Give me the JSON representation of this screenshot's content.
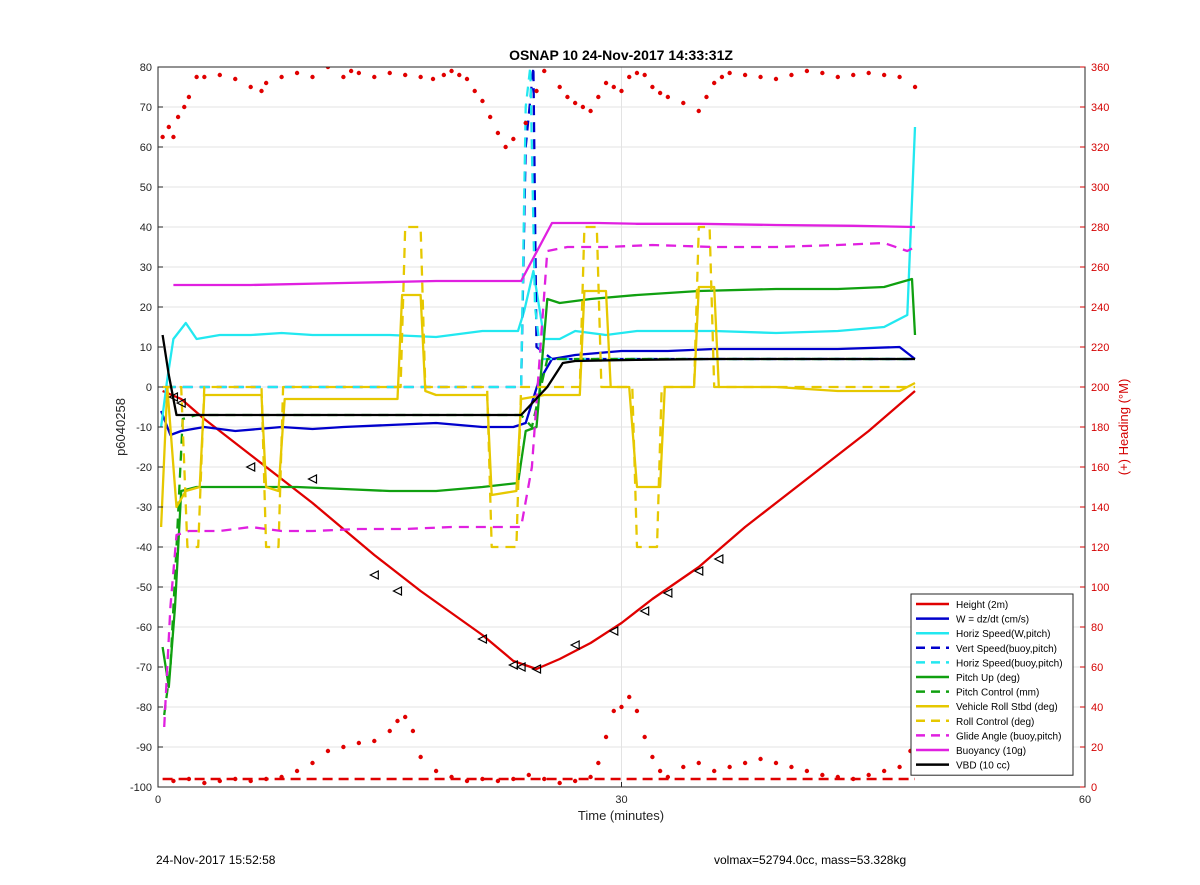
{
  "footer": {
    "left": "24-Nov-2017 15:52:58",
    "right": "volmax=52794.0cc, mass=53.328kg"
  },
  "chart_data": {
    "type": "line",
    "title": "OSNAP 10 24-Nov-2017 14:33:31Z",
    "xlabel": "Time (minutes)",
    "ylabel_left": "p6040258",
    "ylabel_right": "(+) Heading (°M)",
    "xlim": [
      0,
      60
    ],
    "ylim_left": [
      -100,
      80
    ],
    "ylim_right": [
      0,
      360
    ],
    "xticks": [
      0,
      30,
      60
    ],
    "yticks_left": [
      80,
      70,
      60,
      50,
      40,
      30,
      20,
      10,
      0,
      -10,
      -20,
      -30,
      -40,
      -50,
      -60,
      -70,
      -80,
      -90,
      -100
    ],
    "yticks_right": [
      360,
      340,
      320,
      300,
      280,
      260,
      240,
      220,
      200,
      180,
      160,
      140,
      120,
      100,
      80,
      60,
      40,
      20,
      0
    ],
    "grid": true,
    "legend_position": "bottom-right",
    "colors": {
      "height": "#e00000",
      "w": "#0000cc",
      "horiz_speed": "#22e8f0",
      "vert_speed_buoy": "#0000cc",
      "horiz_speed_buoy": "#22e8f0",
      "pitch": "#10a010",
      "pitch_control": "#10a010",
      "roll": "#e6c800",
      "roll_control": "#e6c800",
      "glide": "#e020e0",
      "buoyancy": "#e020e0",
      "vbd": "#000000",
      "heading": "#e00000",
      "axis": "#262626",
      "axis_right": "#d40000",
      "grid": "#e3e3e3"
    },
    "series": [
      {
        "name": "Height (2m)",
        "color_key": "height",
        "style": "solid",
        "x": [
          0.3,
          1.5,
          3,
          6,
          10,
          14,
          17,
          21,
          23,
          24.5,
          26,
          28,
          30,
          32,
          35,
          38,
          42,
          46,
          49
        ],
        "y": [
          -1,
          -3,
          -8,
          -17,
          -29,
          -42,
          -51,
          -62,
          -68.5,
          -70.5,
          -68,
          -64,
          -59,
          -53,
          -45,
          -35,
          -23,
          -11,
          -1
        ]
      },
      {
        "name": "W = dz/dt (cm/s)",
        "color_key": "w",
        "style": "solid",
        "x": [
          0.2,
          0.8,
          1.5,
          3,
          5,
          8,
          10,
          12,
          15,
          18,
          21,
          23,
          23.8,
          24.6,
          25.5,
          27,
          30,
          33,
          36,
          40,
          44,
          48,
          49
        ],
        "y": [
          -6,
          -12,
          -11,
          -10,
          -11,
          -10,
          -10.5,
          -10,
          -9.5,
          -9,
          -10,
          -10,
          -9,
          1,
          7,
          8,
          9,
          9,
          9.5,
          9.5,
          9.5,
          10,
          7
        ]
      },
      {
        "name": "Horiz Speed(W,pitch)",
        "color_key": "horiz_speed",
        "style": "solid",
        "x": [
          0.2,
          0.6,
          1,
          1.8,
          2.5,
          4,
          6,
          8,
          10,
          12,
          15,
          18,
          21,
          23.3,
          23.7,
          24.3,
          25,
          26,
          27,
          29,
          31,
          33,
          36,
          40,
          44,
          47,
          48.5,
          49
        ],
        "y": [
          -10,
          2,
          12,
          16,
          12,
          13,
          13,
          13.5,
          13,
          13,
          13,
          12.5,
          14,
          14,
          19,
          29,
          12,
          12,
          14,
          13,
          14,
          14,
          14,
          13.5,
          14,
          15,
          18,
          65
        ]
      },
      {
        "name": "Vert Speed(buoy,pitch)",
        "color_key": "vert_speed_buoy",
        "style": "dashed",
        "x": [
          0.5,
          23.5,
          23.8,
          24.3,
          24.5,
          25.5,
          49
        ],
        "y": [
          0,
          0,
          60,
          80,
          10,
          7,
          7
        ]
      },
      {
        "name": "Horiz Speed(buoy,pitch)",
        "color_key": "horiz_speed_buoy",
        "style": "dashed",
        "x": [
          0.5,
          23.5,
          23.8,
          24.1,
          24.4,
          24.8,
          49
        ],
        "y": [
          0,
          0,
          70,
          80,
          20,
          7,
          7
        ]
      },
      {
        "name": "Pitch Up (deg)",
        "color_key": "pitch",
        "style": "solid",
        "x": [
          0.3,
          0.7,
          1.1,
          1.5,
          2.5,
          4,
          6,
          9,
          12,
          15,
          18,
          21,
          23.3,
          23.8,
          24.5,
          25.2,
          26,
          28,
          31,
          35,
          40,
          44,
          47,
          48.8,
          49
        ],
        "y": [
          -65,
          -75,
          -55,
          -26,
          -25,
          -25,
          -25,
          -25,
          -25.5,
          -26,
          -26,
          -25,
          -24,
          -11,
          -10,
          22,
          21,
          22,
          23,
          24,
          24.5,
          24.5,
          25,
          27,
          13
        ]
      },
      {
        "name": "Pitch Control (mm)",
        "color_key": "pitch_control",
        "style": "dashed",
        "x": [
          0.4,
          0.8,
          1.2,
          1.6,
          2.5,
          6,
          10,
          14,
          18,
          21,
          23.5,
          24.2,
          25.2,
          27,
          31,
          35,
          40,
          45,
          49
        ],
        "y": [
          -82,
          -70,
          -40,
          -8,
          -7,
          -7,
          -7,
          -7,
          -7,
          -7,
          -7,
          -10,
          7,
          7,
          7,
          7,
          7,
          7,
          7
        ]
      },
      {
        "name": "Vehicle Roll Stbd (deg)",
        "color_key": "roll",
        "style": "solid",
        "x": [
          0.2,
          0.6,
          1.2,
          1.8,
          2.7,
          3,
          5,
          6.7,
          7,
          7.8,
          8.2,
          11,
          15.5,
          15.8,
          17,
          17.3,
          18,
          21.3,
          21.6,
          23.2,
          23.5,
          25,
          27.3,
          27.6,
          29,
          29.3,
          30.5,
          31,
          32.5,
          32.8,
          34.7,
          35,
          36,
          36.3,
          40,
          44,
          48,
          49
        ],
        "y": [
          -35,
          0,
          -30,
          -26,
          -25,
          -2,
          -2,
          -2,
          -25,
          -26,
          -3,
          -3,
          -3,
          23,
          23,
          -1,
          -2,
          -2,
          -27,
          -26,
          -3,
          -2,
          -2,
          24,
          24,
          0,
          0,
          -25,
          -25,
          0,
          0,
          25,
          25,
          0,
          0,
          -1,
          -1,
          1
        ]
      },
      {
        "name": "Roll Control (deg)",
        "color_key": "roll_control",
        "style": "dashed",
        "x": [
          0.3,
          1.5,
          1.9,
          2.6,
          3,
          6.7,
          7,
          7.8,
          8.1,
          15.7,
          16,
          17,
          17.3,
          21.3,
          21.6,
          23.2,
          23.5,
          27.3,
          27.6,
          28.4,
          28.7,
          30.7,
          31,
          32.3,
          32.6,
          34.7,
          35,
          35.7,
          36,
          49
        ],
        "y": [
          0,
          0,
          -40,
          -40,
          0,
          0,
          -40,
          -40,
          0,
          0,
          40,
          40,
          0,
          0,
          -40,
          -40,
          0,
          0,
          40,
          40,
          0,
          0,
          -40,
          -40,
          0,
          0,
          40,
          40,
          0,
          0
        ]
      },
      {
        "name": "Glide Angle (buoy,pitch)",
        "color_key": "glide",
        "style": "dashed",
        "x": [
          0.4,
          0.8,
          1.2,
          2,
          4,
          6,
          8,
          10,
          13,
          16,
          19,
          22,
          23.5,
          24.2,
          25.2,
          26.5,
          29,
          32,
          36,
          40,
          44,
          47,
          48.5,
          49
        ],
        "y": [
          -85,
          -55,
          -37,
          -36,
          -36,
          -35,
          -36,
          -36,
          -35.5,
          -35.5,
          -35,
          -35,
          -35,
          -20,
          34,
          35,
          35,
          35.5,
          35,
          35,
          35.5,
          36,
          34,
          35
        ]
      },
      {
        "name": "Buoyancy (10g)",
        "color_key": "buoyancy",
        "style": "solid",
        "x": [
          1,
          6,
          12,
          18,
          22.5,
          23.5,
          25.5,
          27,
          28.5,
          31,
          35,
          40,
          45,
          49
        ],
        "y": [
          25.5,
          25.5,
          26,
          26.5,
          26.5,
          26.5,
          41,
          41,
          41,
          40.8,
          40.8,
          40.5,
          40.3,
          40
        ]
      },
      {
        "name": "VBD (10 cc)",
        "color_key": "vbd",
        "style": "solid",
        "x": [
          0.3,
          0.7,
          1.2,
          1.5,
          6,
          12,
          18,
          23.5,
          25.2,
          26.2,
          27,
          31,
          36,
          42,
          49
        ],
        "y": [
          13,
          3,
          -7,
          -7,
          -7,
          -7,
          -7,
          -7,
          0,
          6,
          6.5,
          6.8,
          7,
          7,
          7
        ]
      }
    ],
    "legend": [
      {
        "label": "Height (2m)",
        "color_key": "height",
        "style": "solid"
      },
      {
        "label": "W = dz/dt (cm/s)",
        "color_key": "w",
        "style": "solid"
      },
      {
        "label": "Horiz Speed(W,pitch)",
        "color_key": "horiz_speed",
        "style": "solid"
      },
      {
        "label": "Vert Speed(buoy,pitch)",
        "color_key": "vert_speed_buoy",
        "style": "dashed"
      },
      {
        "label": "Horiz Speed(buoy,pitch)",
        "color_key": "horiz_speed_buoy",
        "style": "dashed"
      },
      {
        "label": "Pitch Up (deg)",
        "color_key": "pitch",
        "style": "solid"
      },
      {
        "label": "Pitch Control (mm)",
        "color_key": "pitch_control",
        "style": "dashed"
      },
      {
        "label": "Vehicle Roll Stbd (deg)",
        "color_key": "roll",
        "style": "solid"
      },
      {
        "label": "Roll Control (deg)",
        "color_key": "roll_control",
        "style": "dashed"
      },
      {
        "label": "Glide Angle (buoy,pitch)",
        "color_key": "glide",
        "style": "dashed"
      },
      {
        "label": "Buoyancy (10g)",
        "color_key": "buoyancy",
        "style": "solid"
      },
      {
        "label": "VBD (10 cc)",
        "color_key": "vbd",
        "style": "solid"
      }
    ],
    "height_markers": {
      "x": [
        1,
        1.5,
        6,
        10,
        14,
        15.5,
        21,
        23,
        23.5,
        24.5,
        27,
        29.5,
        31.5,
        33,
        35,
        36.3
      ],
      "y": [
        -2.5,
        -4,
        -20,
        -23,
        -47,
        -51,
        -63,
        -69.5,
        -70,
        -70.5,
        -64.5,
        -61,
        -56,
        -51.5,
        -46,
        -43
      ]
    },
    "heading": {
      "name": "Heading",
      "x": [
        0.3,
        0.7,
        1,
        1.3,
        1.7,
        2,
        2.5,
        3,
        4,
        5,
        6,
        6.7,
        7,
        8,
        9,
        10,
        11,
        12,
        12.5,
        13,
        14,
        15,
        16,
        17,
        17.8,
        18.5,
        19,
        19.5,
        20,
        20.5,
        21,
        21.5,
        22,
        22.5,
        23,
        23.8,
        24.5,
        25,
        26,
        26.5,
        27,
        27.5,
        28,
        28.5,
        29,
        29.5,
        30,
        30.5,
        31,
        31.5,
        32,
        32.5,
        33,
        34,
        35,
        35.5,
        36,
        36.5,
        37,
        38,
        39,
        40,
        41,
        42,
        43,
        44,
        45,
        46,
        47,
        48,
        49
      ],
      "y": [
        325,
        330,
        325,
        335,
        340,
        345,
        355,
        355,
        356,
        354,
        350,
        348,
        352,
        355,
        357,
        355,
        360,
        355,
        358,
        357,
        355,
        357,
        356,
        355,
        354,
        356,
        358,
        356,
        354,
        348,
        343,
        335,
        327,
        320,
        324,
        332,
        348,
        358,
        350,
        345,
        342,
        340,
        338,
        345,
        352,
        350,
        348,
        355,
        357,
        356,
        350,
        347,
        345,
        342,
        338,
        345,
        352,
        355,
        357,
        356,
        355,
        354,
        356,
        358,
        357,
        355,
        356,
        357,
        356,
        355,
        350
      ]
    },
    "heading_low": {
      "x": [
        1,
        2,
        3,
        4,
        5,
        6,
        7,
        8,
        9,
        10,
        11,
        12,
        13,
        14,
        15,
        15.5,
        16,
        16.5,
        17,
        18,
        19,
        20,
        21,
        22,
        23,
        24,
        25,
        26,
        27,
        28,
        28.5,
        29,
        29.5,
        30,
        30.5,
        31,
        31.5,
        32,
        32.5,
        33,
        34,
        35,
        36,
        37,
        38,
        39,
        40,
        41,
        42,
        43,
        44,
        45,
        46,
        47,
        48,
        48.7
      ],
      "y": [
        3,
        4,
        2,
        3,
        4,
        3,
        4,
        5,
        8,
        12,
        18,
        20,
        22,
        23,
        28,
        33,
        35,
        28,
        15,
        8,
        5,
        3,
        4,
        3,
        4,
        6,
        4,
        2,
        3,
        5,
        12,
        25,
        38,
        40,
        45,
        38,
        25,
        15,
        8,
        5,
        10,
        12,
        8,
        10,
        12,
        14,
        12,
        10,
        8,
        6,
        5,
        4,
        6,
        8,
        10,
        18
      ]
    },
    "heading_dashed": {
      "x": [
        0.3,
        49
      ],
      "y": [
        4,
        4
      ]
    }
  }
}
